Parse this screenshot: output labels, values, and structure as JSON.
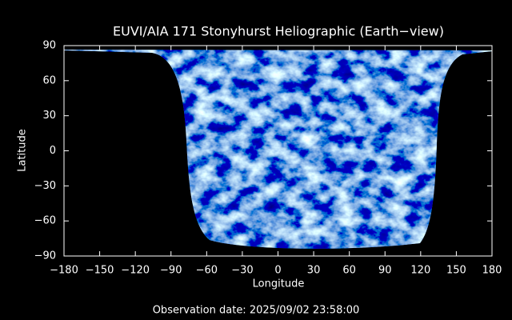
{
  "chart_data": {
    "type": "image",
    "title": "EUVI/AIA 171 Stonyhurst Heliographic (Earth−view)",
    "x_label": "Longitude",
    "y_label": "Latitude",
    "footer": "Observation date: 2025/09/02 23:58:00",
    "xlim": [
      -180,
      180
    ],
    "ylim": [
      -90,
      90
    ],
    "xticks": [
      {
        "value": -180,
        "label": "−180"
      },
      {
        "value": -150,
        "label": "−150"
      },
      {
        "value": -120,
        "label": "−120"
      },
      {
        "value": -90,
        "label": "−90"
      },
      {
        "value": -60,
        "label": "−60"
      },
      {
        "value": -30,
        "label": "−30"
      },
      0,
      30,
      60,
      90,
      120,
      150,
      180
    ],
    "yticks": [
      {
        "value": -90,
        "label": "−90"
      },
      {
        "value": -60,
        "label": "−60"
      },
      {
        "value": -30,
        "label": "−30"
      },
      0,
      30,
      60,
      90
    ]
  }
}
